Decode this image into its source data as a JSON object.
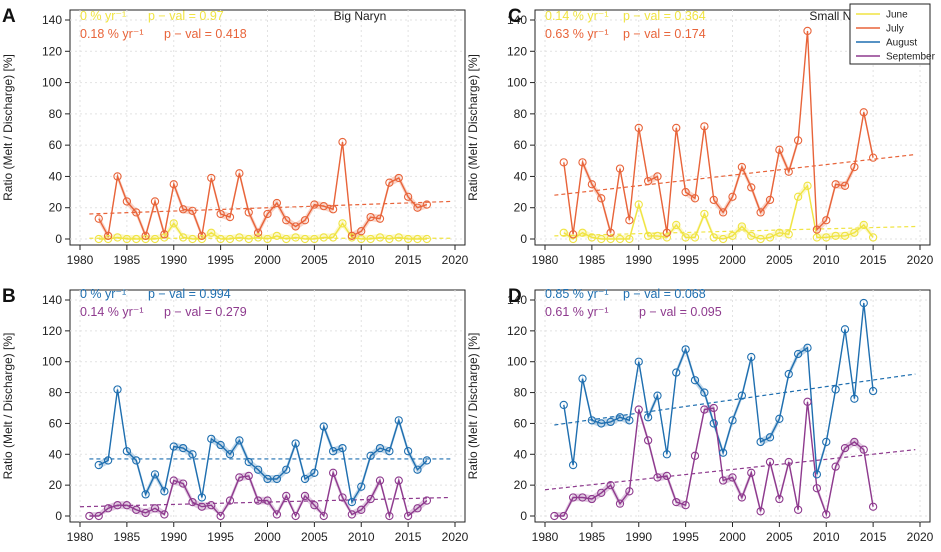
{
  "figure": {
    "ylabel": "Ratio (Melt / Discharge) [%]",
    "colors": {
      "june": "#f0e442",
      "july": "#e8643a",
      "august": "#1f6fb0",
      "september": "#8e3a8e"
    }
  },
  "legend": {
    "items": [
      {
        "label": "June",
        "color": "#f0e442"
      },
      {
        "label": "July",
        "color": "#e8643a"
      },
      {
        "label": "August",
        "color": "#1f6fb0"
      },
      {
        "label": "September",
        "color": "#8e3a8e"
      }
    ]
  },
  "chart_data": [
    {
      "panel": "A",
      "title": "Big Naryn",
      "type": "line",
      "xlim": [
        1980,
        2020
      ],
      "ylim": [
        0,
        140
      ],
      "xticks": [
        1980,
        1985,
        1990,
        1995,
        2000,
        2005,
        2010,
        2015,
        2020
      ],
      "yticks": [
        0,
        20,
        40,
        60,
        80,
        100,
        120,
        140
      ],
      "stats": [
        {
          "rate": "0",
          "unit": "% yr⁻¹",
          "pval": "p − val = 0.97",
          "color": "#f0e442"
        },
        {
          "rate": "0.18",
          "unit": "% yr⁻¹",
          "pval": "p − val = 0.418",
          "color": "#e8643a"
        }
      ],
      "series": [
        {
          "name": "June",
          "color": "#f0e442",
          "x": [
            1982,
            1983,
            1984,
            1985,
            1986,
            1987,
            1988,
            1989,
            1990,
            1991,
            1992,
            1993,
            1994,
            1995,
            1996,
            1997,
            1998,
            1999,
            2000,
            2001,
            2002,
            2003,
            2004,
            2005,
            2006,
            2007,
            2008,
            2009,
            2010,
            2011,
            2012,
            2013,
            2014,
            2015,
            2016,
            2017
          ],
          "values": [
            0,
            0,
            1,
            0,
            0,
            0,
            0,
            1,
            10,
            1,
            0,
            0,
            4,
            0,
            0,
            1,
            0,
            1,
            0,
            2,
            0,
            1,
            0,
            0,
            1,
            1,
            10,
            1,
            0,
            0,
            1,
            0,
            1,
            0,
            0,
            0
          ],
          "trend": [
            0.5,
            0.5
          ]
        },
        {
          "name": "July",
          "color": "#e8643a",
          "x": [
            1982,
            1983,
            1984,
            1985,
            1986,
            1987,
            1988,
            1989,
            1990,
            1991,
            1992,
            1993,
            1994,
            1995,
            1996,
            1997,
            1998,
            1999,
            2000,
            2001,
            2002,
            2003,
            2004,
            2005,
            2006,
            2007,
            2008,
            2009,
            2010,
            2011,
            2012,
            2013,
            2014,
            2015,
            2016,
            2017
          ],
          "values": [
            13,
            2,
            40,
            24,
            17,
            2,
            24,
            3,
            35,
            19,
            18,
            2,
            39,
            16,
            14,
            42,
            17,
            4,
            16,
            23,
            12,
            8,
            12,
            22,
            21,
            19,
            62,
            2,
            5,
            14,
            13,
            36,
            39,
            27,
            20,
            22
          ],
          "trend": [
            16,
            24
          ]
        }
      ]
    },
    {
      "panel": "C",
      "title": "Small Naryn",
      "type": "line",
      "xlim": [
        1980,
        2020
      ],
      "ylim": [
        0,
        140
      ],
      "xticks": [
        1980,
        1985,
        1990,
        1995,
        2000,
        2005,
        2010,
        2015,
        2020
      ],
      "yticks": [
        0,
        20,
        40,
        60,
        80,
        100,
        120,
        140
      ],
      "stats": [
        {
          "rate": "0.14",
          "unit": "% yr⁻¹",
          "pval": "p − val = 0.364",
          "color": "#f0e442"
        },
        {
          "rate": "0.63",
          "unit": "% yr⁻¹",
          "pval": "p − val = 0.174",
          "color": "#e8643a"
        }
      ],
      "series": [
        {
          "name": "June",
          "color": "#f0e442",
          "x": [
            1982,
            1983,
            1984,
            1985,
            1986,
            1987,
            1988,
            1989,
            1990,
            1991,
            1992,
            1993,
            1994,
            1995,
            1996,
            1997,
            1998,
            1999,
            2000,
            2001,
            2002,
            2003,
            2004,
            2005,
            2006,
            2007,
            2008,
            2009,
            2010,
            2011,
            2012,
            2013,
            2014,
            2015
          ],
          "values": [
            4,
            0,
            4,
            1,
            0,
            0,
            0,
            0,
            22,
            2,
            2,
            1,
            9,
            1,
            1,
            16,
            1,
            0,
            2,
            8,
            2,
            0,
            1,
            4,
            3,
            27,
            34,
            1,
            1,
            2,
            2,
            4,
            9,
            1
          ],
          "trend": [
            2,
            8
          ]
        },
        {
          "name": "July",
          "color": "#e8643a",
          "x": [
            1982,
            1983,
            1984,
            1985,
            1986,
            1987,
            1988,
            1989,
            1990,
            1991,
            1992,
            1993,
            1994,
            1995,
            1996,
            1997,
            1998,
            1999,
            2000,
            2001,
            2002,
            2003,
            2004,
            2005,
            2006,
            2007,
            2008,
            2009,
            2010,
            2011,
            2012,
            2013,
            2014,
            2015
          ],
          "values": [
            49,
            3,
            49,
            35,
            26,
            4,
            45,
            12,
            71,
            37,
            40,
            4,
            71,
            30,
            26,
            72,
            25,
            17,
            27,
            46,
            33,
            17,
            25,
            57,
            43,
            63,
            133,
            6,
            12,
            35,
            34,
            46,
            81,
            52
          ],
          "trend": [
            28,
            54
          ]
        }
      ]
    },
    {
      "panel": "B",
      "title": "",
      "type": "line",
      "xlim": [
        1980,
        2020
      ],
      "ylim": [
        0,
        140
      ],
      "xticks": [
        1980,
        1985,
        1990,
        1995,
        2000,
        2005,
        2010,
        2015,
        2020
      ],
      "yticks": [
        0,
        20,
        40,
        60,
        80,
        100,
        120,
        140
      ],
      "stats": [
        {
          "rate": "0",
          "unit": "% yr⁻¹",
          "pval": "p − val = 0.994",
          "color": "#1f6fb0"
        },
        {
          "rate": "0.14",
          "unit": "% yr⁻¹",
          "pval": "p − val = 0.279",
          "color": "#8e3a8e"
        }
      ],
      "series": [
        {
          "name": "August",
          "color": "#1f6fb0",
          "x": [
            1982,
            1983,
            1984,
            1985,
            1986,
            1987,
            1988,
            1989,
            1990,
            1991,
            1992,
            1993,
            1994,
            1995,
            1996,
            1997,
            1998,
            1999,
            2000,
            2001,
            2002,
            2003,
            2004,
            2005,
            2006,
            2007,
            2008,
            2009,
            2010,
            2011,
            2012,
            2013,
            2014,
            2015,
            2016,
            2017
          ],
          "values": [
            33,
            36,
            82,
            42,
            36,
            14,
            27,
            16,
            45,
            44,
            40,
            12,
            50,
            46,
            40,
            49,
            35,
            30,
            24,
            24,
            30,
            47,
            24,
            28,
            58,
            42,
            44,
            9,
            19,
            39,
            44,
            42,
            62,
            42,
            30,
            36
          ],
          "trend": [
            37,
            37
          ]
        },
        {
          "name": "September",
          "color": "#8e3a8e",
          "x": [
            1981,
            1982,
            1983,
            1984,
            1985,
            1986,
            1987,
            1988,
            1989,
            1990,
            1991,
            1992,
            1993,
            1994,
            1995,
            1996,
            1997,
            1998,
            1999,
            2000,
            2001,
            2002,
            2003,
            2004,
            2005,
            2006,
            2007,
            2008,
            2009,
            2010,
            2011,
            2012,
            2013,
            2014,
            2015,
            2016,
            2017
          ],
          "values": [
            0,
            0,
            5,
            7,
            7,
            4,
            2,
            5,
            1,
            23,
            21,
            9,
            6,
            7,
            0,
            10,
            25,
            26,
            10,
            10,
            1,
            13,
            0,
            13,
            7,
            0,
            28,
            12,
            1,
            4,
            11,
            23,
            0,
            23,
            0,
            5,
            10
          ],
          "trend": [
            6,
            12
          ]
        }
      ]
    },
    {
      "panel": "D",
      "title": "",
      "type": "line",
      "xlim": [
        1980,
        2020
      ],
      "ylim": [
        0,
        140
      ],
      "xticks": [
        1980,
        1985,
        1990,
        1995,
        2000,
        2005,
        2010,
        2015,
        2020
      ],
      "yticks": [
        0,
        20,
        40,
        60,
        80,
        100,
        120,
        140
      ],
      "stats": [
        {
          "rate": "0.85",
          "unit": "% yr⁻¹",
          "pval": "p − val = 0.068",
          "color": "#1f6fb0"
        },
        {
          "rate": "0.61",
          "unit": "% yr⁻¹",
          "pval": "p − val = 0.095",
          "color": "#8e3a8e"
        }
      ],
      "series": [
        {
          "name": "August",
          "color": "#1f6fb0",
          "x": [
            1982,
            1983,
            1984,
            1985,
            1986,
            1987,
            1988,
            1989,
            1990,
            1991,
            1992,
            1993,
            1994,
            1995,
            1996,
            1997,
            1998,
            1999,
            2000,
            2001,
            2002,
            2003,
            2004,
            2005,
            2006,
            2007,
            2008,
            2009,
            2010,
            2011,
            2012,
            2013,
            2014,
            2015
          ],
          "values": [
            72,
            33,
            89,
            62,
            60,
            61,
            64,
            62,
            100,
            64,
            78,
            40,
            93,
            108,
            88,
            80,
            60,
            41,
            62,
            78,
            103,
            48,
            51,
            63,
            92,
            105,
            109,
            27,
            48,
            82,
            121,
            76,
            138,
            81
          ],
          "trend": [
            59,
            92
          ]
        },
        {
          "name": "September",
          "color": "#8e3a8e",
          "x": [
            1981,
            1982,
            1983,
            1984,
            1985,
            1986,
            1987,
            1988,
            1989,
            1990,
            1991,
            1992,
            1993,
            1994,
            1995,
            1996,
            1997,
            1998,
            1999,
            2000,
            2001,
            2002,
            2003,
            2004,
            2005,
            2006,
            2007,
            2008,
            2009,
            2010,
            2011,
            2012,
            2013,
            2014,
            2015
          ],
          "values": [
            0,
            0,
            12,
            12,
            11,
            15,
            20,
            8,
            16,
            69,
            49,
            25,
            26,
            9,
            7,
            39,
            69,
            70,
            23,
            25,
            12,
            28,
            3,
            35,
            11,
            35,
            4,
            74,
            18,
            1,
            32,
            44,
            48,
            43,
            6
          ],
          "trend": [
            17,
            43
          ]
        }
      ]
    }
  ]
}
